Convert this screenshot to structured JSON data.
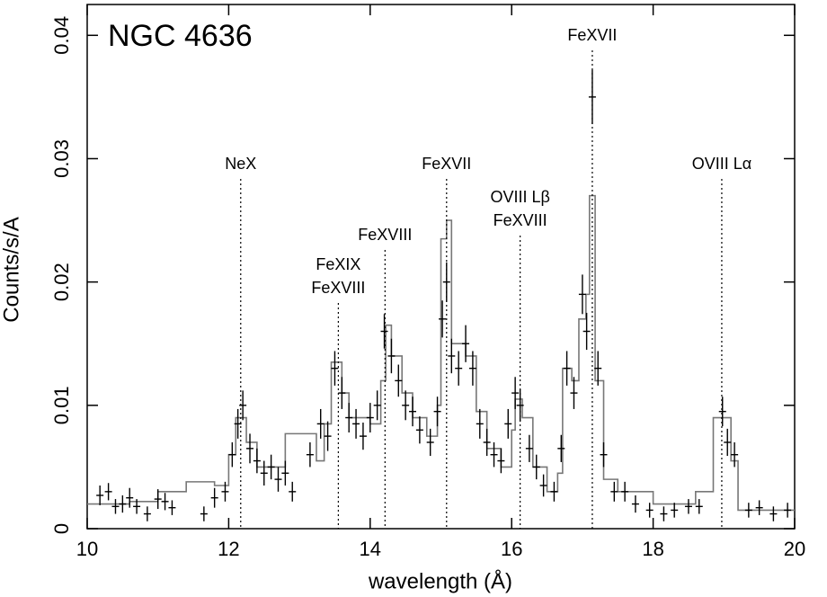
{
  "chart_data": {
    "type": "spectrum",
    "title": "NGC 4636",
    "x_label": "wavelength (Å)",
    "y_label": "Counts/s/A",
    "xlim": [
      10,
      20
    ],
    "xticks": [
      10,
      12,
      14,
      16,
      18,
      20
    ],
    "ylim": [
      0,
      0.0425
    ],
    "yticks": [
      0,
      0.01,
      0.02,
      0.03,
      0.04
    ],
    "data": {
      "color": "#000000",
      "x": [
        10.18,
        10.3,
        10.4,
        10.5,
        10.6,
        10.7,
        10.85,
        11.0,
        11.1,
        11.2,
        11.65,
        11.8,
        11.95,
        12.05,
        12.13,
        12.2,
        12.3,
        12.4,
        12.5,
        12.6,
        12.7,
        12.8,
        12.9,
        13.15,
        13.3,
        13.4,
        13.5,
        13.6,
        13.7,
        13.8,
        13.9,
        14.0,
        14.1,
        14.2,
        14.3,
        14.4,
        14.5,
        14.6,
        14.7,
        14.85,
        14.95,
        15.02,
        15.08,
        15.15,
        15.25,
        15.35,
        15.45,
        15.55,
        15.65,
        15.75,
        15.85,
        15.95,
        16.05,
        16.12,
        16.25,
        16.35,
        16.45,
        16.6,
        16.7,
        16.78,
        16.88,
        17.0,
        17.06,
        17.14,
        17.22,
        17.3,
        17.45,
        17.6,
        17.75,
        17.95,
        18.15,
        18.3,
        18.5,
        18.65,
        18.98,
        19.05,
        19.15,
        19.35,
        19.5,
        19.7,
        19.9
      ],
      "y": [
        0.0027,
        0.003,
        0.0018,
        0.002,
        0.0025,
        0.0018,
        0.0012,
        0.0024,
        0.0022,
        0.0017,
        0.0012,
        0.0025,
        0.003,
        0.006,
        0.0085,
        0.01,
        0.0065,
        0.0055,
        0.0045,
        0.005,
        0.004,
        0.0045,
        0.003,
        0.006,
        0.0085,
        0.0075,
        0.013,
        0.011,
        0.009,
        0.0085,
        0.0075,
        0.009,
        0.01,
        0.016,
        0.014,
        0.012,
        0.01,
        0.0095,
        0.008,
        0.007,
        0.0095,
        0.017,
        0.02,
        0.014,
        0.013,
        0.015,
        0.013,
        0.0085,
        0.007,
        0.006,
        0.0055,
        0.0085,
        0.011,
        0.01,
        0.0065,
        0.005,
        0.0035,
        0.003,
        0.0065,
        0.013,
        0.011,
        0.019,
        0.016,
        0.035,
        0.013,
        0.006,
        0.003,
        0.003,
        0.002,
        0.0015,
        0.0012,
        0.0015,
        0.0018,
        0.0018,
        0.0095,
        0.007,
        0.006,
        0.0015,
        0.0017,
        0.0012,
        0.0015
      ],
      "yerr": [
        0.0008,
        0.0007,
        0.0006,
        0.0007,
        0.0008,
        0.0006,
        0.0006,
        0.0008,
        0.0007,
        0.0006,
        0.0006,
        0.0008,
        0.0008,
        0.001,
        0.0012,
        0.0012,
        0.0012,
        0.001,
        0.001,
        0.001,
        0.001,
        0.001,
        0.0008,
        0.001,
        0.0012,
        0.0012,
        0.0014,
        0.0013,
        0.0012,
        0.0012,
        0.0011,
        0.0012,
        0.0012,
        0.0014,
        0.0014,
        0.0013,
        0.0012,
        0.0012,
        0.0011,
        0.0011,
        0.0012,
        0.0015,
        0.0016,
        0.0014,
        0.0014,
        0.0015,
        0.0014,
        0.0012,
        0.0011,
        0.001,
        0.001,
        0.0012,
        0.0013,
        0.0013,
        0.0011,
        0.001,
        0.0009,
        0.0008,
        0.0011,
        0.0014,
        0.0013,
        0.0016,
        0.0015,
        0.0022,
        0.0014,
        0.001,
        0.0008,
        0.0008,
        0.0007,
        0.0006,
        0.0006,
        0.0006,
        0.0006,
        0.0006,
        0.0012,
        0.0011,
        0.001,
        0.0006,
        0.0006,
        0.0006,
        0.0006
      ]
    },
    "model": {
      "color": "#777777",
      "x": [
        10.0,
        10.6,
        11.0,
        11.4,
        11.8,
        12.0,
        12.1,
        12.25,
        12.4,
        12.8,
        13.24,
        13.35,
        13.45,
        13.6,
        13.7,
        14.0,
        14.15,
        14.22,
        14.3,
        14.45,
        14.6,
        14.8,
        14.95,
        15.0,
        15.08,
        15.15,
        15.35,
        15.5,
        15.65,
        15.85,
        16.0,
        16.05,
        16.15,
        16.3,
        16.5,
        16.65,
        16.72,
        16.85,
        16.95,
        17.05,
        17.1,
        17.18,
        17.3,
        17.5,
        18.0,
        18.6,
        18.85,
        19.1,
        19.2
      ],
      "values": [
        0.002,
        0.0022,
        0.003,
        0.0038,
        0.0035,
        0.006,
        0.009,
        0.007,
        0.005,
        0.0077,
        0.0055,
        0.0085,
        0.0135,
        0.011,
        0.009,
        0.0085,
        0.012,
        0.0165,
        0.014,
        0.011,
        0.009,
        0.0075,
        0.01,
        0.0235,
        0.025,
        0.015,
        0.014,
        0.0095,
        0.0065,
        0.005,
        0.008,
        0.0105,
        0.009,
        0.005,
        0.003,
        0.0045,
        0.013,
        0.012,
        0.017,
        0.019,
        0.027,
        0.012,
        0.004,
        0.003,
        0.002,
        0.003,
        0.009,
        0.0055,
        0.0015
      ]
    },
    "annotations": [
      {
        "lines": [
          "NeX"
        ],
        "x": 12.17
      },
      {
        "lines": [
          "FeXIX",
          "FeXVIII"
        ],
        "x": 13.55
      },
      {
        "lines": [
          "FeXVIII"
        ],
        "x": 14.21
      },
      {
        "lines": [
          "FeXVII"
        ],
        "x": 15.08
      },
      {
        "lines": [
          "OVIII Lβ",
          "FeXVIII"
        ],
        "x": 16.12
      },
      {
        "lines": [
          "FeXVII"
        ],
        "x": 17.14
      },
      {
        "lines": [
          "OVIII Lα"
        ],
        "x": 18.97
      }
    ]
  }
}
